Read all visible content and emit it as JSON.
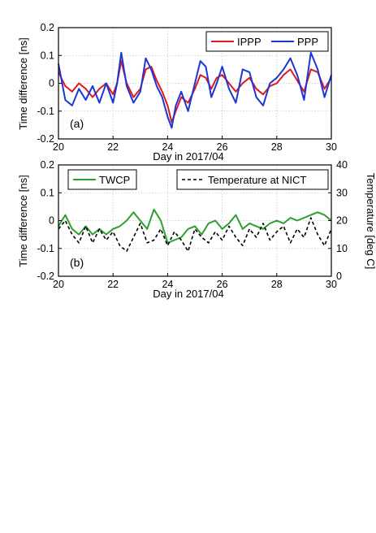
{
  "chart_data": [
    {
      "panel": "(a)",
      "type": "line",
      "xlabel": "Day in 2017/04",
      "ylabel": "Time difference [ns]",
      "xlim": [
        20,
        30
      ],
      "ylim": [
        -0.2,
        0.2
      ],
      "xticks": [
        "20",
        "22",
        "24",
        "26",
        "28",
        "30"
      ],
      "yticks": [
        "0.2",
        "0.1",
        "0",
        "-0.1",
        "-0.2"
      ],
      "grid": true,
      "legend_position": "top-right",
      "series": [
        {
          "name": "IPPP",
          "color": "#e0191e",
          "x": [
            20.0,
            20.25,
            20.5,
            20.75,
            21.0,
            21.25,
            21.5,
            21.75,
            22.0,
            22.15,
            22.3,
            22.5,
            22.75,
            23.0,
            23.2,
            23.4,
            23.6,
            23.8,
            24.0,
            24.15,
            24.3,
            24.5,
            24.75,
            25.0,
            25.2,
            25.4,
            25.6,
            25.8,
            26.0,
            26.25,
            26.5,
            26.75,
            27.0,
            27.25,
            27.5,
            27.75,
            28.0,
            28.25,
            28.5,
            28.75,
            29.0,
            29.25,
            29.5,
            29.75,
            30.0
          ],
          "y": [
            0.04,
            -0.01,
            -0.03,
            0.0,
            -0.02,
            -0.05,
            -0.02,
            0.0,
            -0.04,
            0.0,
            0.08,
            0.0,
            -0.05,
            -0.02,
            0.05,
            0.06,
            0.01,
            -0.03,
            -0.08,
            -0.14,
            -0.1,
            -0.05,
            -0.07,
            -0.02,
            0.03,
            0.02,
            -0.02,
            0.02,
            0.03,
            0.0,
            -0.03,
            0.0,
            0.02,
            -0.02,
            -0.04,
            -0.01,
            0.0,
            0.03,
            0.05,
            0.01,
            -0.03,
            0.05,
            0.04,
            -0.02,
            0.02
          ]
        },
        {
          "name": "PPP",
          "color": "#1a37d6",
          "x": [
            20.0,
            20.25,
            20.5,
            20.75,
            21.0,
            21.25,
            21.5,
            21.75,
            22.0,
            22.15,
            22.3,
            22.5,
            22.75,
            23.0,
            23.2,
            23.4,
            23.6,
            23.8,
            24.0,
            24.15,
            24.3,
            24.5,
            24.75,
            25.0,
            25.2,
            25.4,
            25.6,
            25.8,
            26.0,
            26.25,
            26.5,
            26.75,
            27.0,
            27.25,
            27.5,
            27.75,
            28.0,
            28.25,
            28.5,
            28.75,
            29.0,
            29.25,
            29.5,
            29.75,
            30.0
          ],
          "y": [
            0.07,
            -0.06,
            -0.08,
            -0.02,
            -0.06,
            -0.01,
            -0.07,
            0.0,
            -0.07,
            0.0,
            0.11,
            -0.01,
            -0.07,
            -0.03,
            0.09,
            0.05,
            -0.01,
            -0.05,
            -0.12,
            -0.16,
            -0.08,
            -0.03,
            -0.1,
            0.0,
            0.08,
            0.06,
            -0.05,
            0.0,
            0.06,
            -0.02,
            -0.07,
            0.05,
            0.04,
            -0.05,
            -0.08,
            0.0,
            0.02,
            0.05,
            0.09,
            0.03,
            -0.06,
            0.11,
            0.05,
            -0.05,
            0.03
          ]
        }
      ]
    },
    {
      "panel": "(b)",
      "type": "line",
      "xlabel": "Day in 2017/04",
      "ylabel": "Time difference [ns]",
      "y2label": "Temperature [deg C]",
      "xlim": [
        20,
        30
      ],
      "ylim": [
        -0.2,
        0.2
      ],
      "y2lim": [
        0,
        40
      ],
      "xticks": [
        "20",
        "22",
        "24",
        "26",
        "28",
        "30"
      ],
      "yticks": [
        "0.2",
        "0.1",
        "0",
        "-0.1",
        "-0.2"
      ],
      "y2ticks": [
        "40",
        "30",
        "20",
        "10",
        "0"
      ],
      "grid": true,
      "legend_position": "top",
      "series": [
        {
          "name": "TWCP",
          "color": "#2ca02c",
          "axis": "left",
          "x": [
            20.0,
            20.25,
            20.5,
            20.75,
            21.0,
            21.25,
            21.5,
            21.75,
            22.0,
            22.25,
            22.5,
            22.75,
            23.0,
            23.25,
            23.5,
            23.75,
            24.0,
            24.25,
            24.5,
            24.75,
            25.0,
            25.25,
            25.5,
            25.75,
            26.0,
            26.25,
            26.5,
            26.75,
            27.0,
            27.25,
            27.5,
            27.75,
            28.0,
            28.25,
            28.5,
            28.75,
            29.0,
            29.25,
            29.5,
            29.75,
            30.0
          ],
          "y": [
            -0.02,
            0.02,
            -0.03,
            -0.05,
            -0.02,
            -0.05,
            -0.03,
            -0.05,
            -0.03,
            -0.02,
            0.0,
            0.03,
            0.0,
            -0.03,
            0.04,
            0.0,
            -0.08,
            -0.07,
            -0.06,
            -0.03,
            -0.02,
            -0.05,
            -0.01,
            0.0,
            -0.03,
            -0.01,
            0.02,
            -0.03,
            -0.01,
            -0.02,
            -0.03,
            -0.01,
            0.0,
            -0.01,
            0.01,
            0.0,
            0.01,
            0.02,
            0.03,
            0.02,
            0.0
          ]
        },
        {
          "name": "Temperature at NICT",
          "color": "#000000",
          "axis": "right",
          "dashed": true,
          "x": [
            20.0,
            20.25,
            20.5,
            20.75,
            21.0,
            21.25,
            21.5,
            21.75,
            22.0,
            22.25,
            22.5,
            22.75,
            23.0,
            23.25,
            23.5,
            23.75,
            24.0,
            24.25,
            24.5,
            24.75,
            25.0,
            25.25,
            25.5,
            25.75,
            26.0,
            26.25,
            26.5,
            26.75,
            27.0,
            27.25,
            27.5,
            27.75,
            28.0,
            28.25,
            28.5,
            28.75,
            29.0,
            29.25,
            29.5,
            29.75,
            30.0
          ],
          "y": [
            17,
            20,
            15,
            12,
            18,
            12,
            17,
            13,
            16,
            11,
            9,
            14,
            19,
            12,
            13,
            17,
            11,
            16,
            13,
            9,
            17,
            14,
            12,
            16,
            13,
            18,
            14,
            11,
            17,
            14,
            19,
            13,
            16,
            18,
            12,
            17,
            14,
            21,
            15,
            11,
            17
          ]
        }
      ]
    }
  ]
}
